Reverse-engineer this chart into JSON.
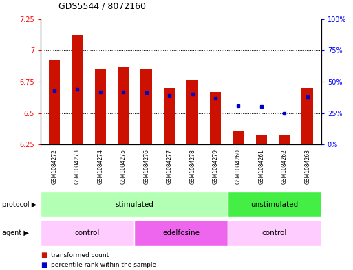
{
  "title": "GDS5544 / 8072160",
  "samples": [
    "GSM1084272",
    "GSM1084273",
    "GSM1084274",
    "GSM1084275",
    "GSM1084276",
    "GSM1084277",
    "GSM1084278",
    "GSM1084279",
    "GSM1084260",
    "GSM1084261",
    "GSM1084262",
    "GSM1084263"
  ],
  "bar_bottoms": [
    6.25,
    6.25,
    6.25,
    6.25,
    6.25,
    6.25,
    6.25,
    6.25,
    6.25,
    6.25,
    6.25,
    6.25
  ],
  "bar_tops": [
    6.92,
    7.12,
    6.85,
    6.87,
    6.85,
    6.7,
    6.76,
    6.67,
    6.36,
    6.33,
    6.33,
    6.7
  ],
  "blue_vals": [
    6.68,
    6.69,
    6.67,
    6.67,
    6.66,
    6.64,
    6.65,
    6.62,
    6.56,
    6.55,
    6.5,
    6.63
  ],
  "bar_color": "#cc1100",
  "blue_color": "#0000cc",
  "ylim": [
    6.25,
    7.25
  ],
  "yticks": [
    6.25,
    6.5,
    6.75,
    7.0,
    7.25
  ],
  "ytick_labels": [
    "6.25",
    "6.5",
    "6.75",
    "7",
    "7.25"
  ],
  "right_yticks": [
    0.0,
    0.25,
    0.5,
    0.75,
    1.0
  ],
  "right_ytick_labels": [
    "0%",
    "25%",
    "50%",
    "75%",
    "100%"
  ],
  "protocol_groups": [
    {
      "label": "stimulated",
      "start": 0,
      "end": 8,
      "color": "#b3ffb3"
    },
    {
      "label": "unstimulated",
      "start": 8,
      "end": 12,
      "color": "#44ee44"
    }
  ],
  "agent_groups": [
    {
      "label": "control",
      "start": 0,
      "end": 4,
      "color": "#ffccff"
    },
    {
      "label": "edelfosine",
      "start": 4,
      "end": 8,
      "color": "#ee66ee"
    },
    {
      "label": "control",
      "start": 8,
      "end": 12,
      "color": "#ffccff"
    }
  ],
  "legend_red_label": "transformed count",
  "legend_blue_label": "percentile rank within the sample",
  "bg_color": "#ffffff",
  "bar_width": 0.5,
  "title_fontsize": 9,
  "tick_fontsize": 7,
  "label_fontsize": 7.5,
  "group_fontsize": 7.5
}
